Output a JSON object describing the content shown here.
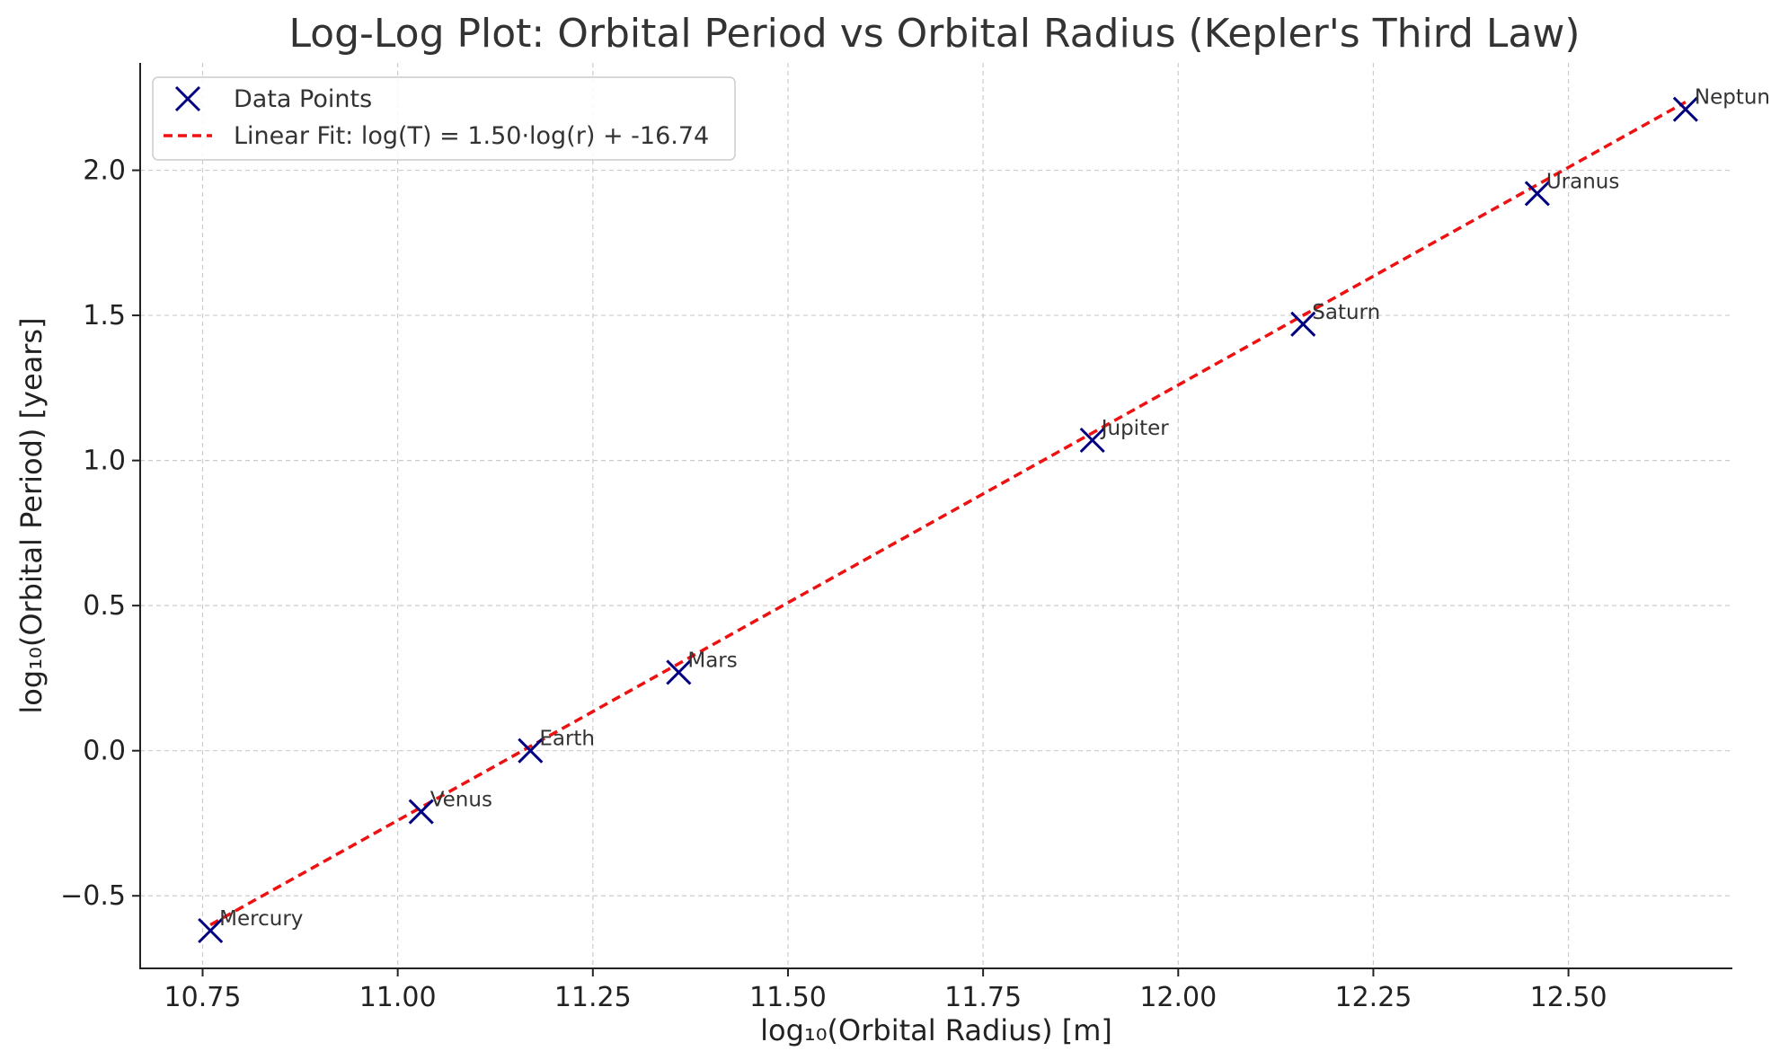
{
  "chart_data": {
    "type": "scatter",
    "title": "Log-Log Plot: Orbital Period vs Orbital Radius (Kepler's Third Law)",
    "xlabel": "log₁₀(Orbital Radius) [m]",
    "ylabel": "log₁₀(Orbital Period) [years]",
    "xlim": [
      10.67,
      12.71
    ],
    "ylim": [
      -0.75,
      2.37
    ],
    "xticks": [
      10.75,
      11.0,
      11.25,
      11.5,
      11.75,
      12.0,
      12.25,
      12.5
    ],
    "xtick_labels": [
      "10.75",
      "11.00",
      "11.25",
      "11.50",
      "11.75",
      "12.00",
      "12.25",
      "12.50"
    ],
    "yticks": [
      -0.5,
      0.0,
      0.5,
      1.0,
      1.5,
      2.0
    ],
    "ytick_labels": [
      "−0.5",
      "0.0",
      "0.5",
      "1.0",
      "1.5",
      "2.0"
    ],
    "grid": true,
    "legend_position": "top-left",
    "series": [
      {
        "name": "Data Points",
        "kind": "scatter",
        "marker": "x",
        "color": "#000080",
        "points": [
          {
            "label": "Mercury",
            "x": 10.76,
            "y": -0.62
          },
          {
            "label": "Venus",
            "x": 11.03,
            "y": -0.21
          },
          {
            "label": "Earth",
            "x": 11.17,
            "y": 0.0
          },
          {
            "label": "Mars",
            "x": 11.36,
            "y": 0.27
          },
          {
            "label": "Jupiter",
            "x": 11.89,
            "y": 1.07
          },
          {
            "label": "Saturn",
            "x": 12.16,
            "y": 1.47
          },
          {
            "label": "Uranus",
            "x": 12.46,
            "y": 1.92
          },
          {
            "label": "Neptune",
            "x": 12.65,
            "y": 2.21
          }
        ]
      },
      {
        "name": "Linear Fit: log(T) = 1.50·log(r) + -16.74",
        "kind": "line",
        "style": "dashed",
        "color": "#ee1111",
        "slope": 1.5,
        "intercept": -16.74,
        "x_range": [
          10.76,
          12.65
        ]
      }
    ]
  }
}
